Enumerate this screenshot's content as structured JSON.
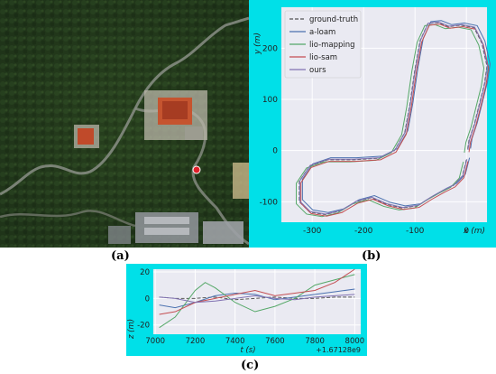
{
  "labels": {
    "a": "(a)",
    "b": "(b)",
    "c": "(c)"
  },
  "colors": {
    "ground_truth": "#555555",
    "a_loam": "#4c72b0",
    "lio_mapping": "#55a868",
    "lio_sam": "#c44e52",
    "ours": "#8172b2",
    "plot_bg": "#eaeaf2",
    "panel_bg": "#00e0e8"
  },
  "satellite": {
    "description_icon": "aerial-map-image",
    "marker_color": "#e0202a"
  },
  "chart_data": [
    {
      "type": "line",
      "panel": "b",
      "xlabel": "x (m)",
      "ylabel": "y (m)",
      "xlim": [
        -360,
        40
      ],
      "ylim": [
        -140,
        280
      ],
      "xticks": [
        -300,
        -200,
        -100,
        0
      ],
      "yticks": [
        -100,
        0,
        100,
        200
      ],
      "grid": true,
      "legend_position": "top-left",
      "series": [
        {
          "name": "ground-truth",
          "style": "dashed",
          "offset": [
            0,
            0
          ]
        },
        {
          "name": "a-loam",
          "style": "solid",
          "offset": [
            6,
            4
          ]
        },
        {
          "name": "lio-mapping",
          "style": "solid",
          "offset": [
            -6,
            -4
          ]
        },
        {
          "name": "lio-sam",
          "style": "solid",
          "offset": [
            3,
            -3
          ]
        },
        {
          "name": "ours",
          "style": "solid",
          "offset": [
            1,
            1
          ]
        }
      ],
      "reference_path": [
        [
          0,
          -18
        ],
        [
          -8,
          -50
        ],
        [
          -25,
          -68
        ],
        [
          -45,
          -78
        ],
        [
          -70,
          -92
        ],
        [
          -95,
          -108
        ],
        [
          -125,
          -112
        ],
        [
          -155,
          -105
        ],
        [
          -185,
          -92
        ],
        [
          -215,
          -100
        ],
        [
          -245,
          -118
        ],
        [
          -275,
          -125
        ],
        [
          -305,
          -120
        ],
        [
          -325,
          -100
        ],
        [
          -325,
          -60
        ],
        [
          -305,
          -30
        ],
        [
          -270,
          -18
        ],
        [
          -220,
          -18
        ],
        [
          -170,
          -15
        ],
        [
          -140,
          0
        ],
        [
          -120,
          35
        ],
        [
          -110,
          90
        ],
        [
          -100,
          160
        ],
        [
          -90,
          215
        ],
        [
          -75,
          248
        ],
        [
          -55,
          250
        ],
        [
          -35,
          242
        ],
        [
          -10,
          245
        ],
        [
          15,
          240
        ],
        [
          30,
          210
        ],
        [
          40,
          165
        ],
        [
          35,
          130
        ],
        [
          25,
          90
        ],
        [
          15,
          50
        ],
        [
          5,
          20
        ],
        [
          2,
          0
        ]
      ]
    },
    {
      "type": "line",
      "panel": "c",
      "xlabel": "t (s)",
      "ylabel": "z (m)",
      "xlim": [
        6990,
        8030
      ],
      "ylim": [
        -27,
        22
      ],
      "xticks": [
        7000,
        7200,
        7400,
        7600,
        7800,
        8000
      ],
      "yticks": [
        -20,
        0,
        20
      ],
      "offset_text": "+1.67128e9",
      "grid": true,
      "series": [
        {
          "name": "ground-truth",
          "style": "dashed",
          "x": [
            7020,
            7100,
            7200,
            7300,
            7400,
            7500,
            7600,
            7700,
            7800,
            7900,
            8000
          ],
          "y": [
            1,
            0,
            0,
            1,
            -1,
            0,
            1,
            0,
            0,
            1,
            1
          ]
        },
        {
          "name": "a-loam",
          "x": [
            7020,
            7100,
            7200,
            7300,
            7400,
            7500,
            7600,
            7700,
            7800,
            7900,
            8000
          ],
          "y": [
            -5,
            -7,
            -3,
            2,
            4,
            3,
            -1,
            1,
            3,
            5,
            7
          ]
        },
        {
          "name": "lio-mapping",
          "x": [
            7020,
            7100,
            7200,
            7250,
            7300,
            7400,
            7500,
            7600,
            7700,
            7800,
            7900,
            8000
          ],
          "y": [
            -22,
            -14,
            6,
            12,
            8,
            -3,
            -10,
            -6,
            0,
            10,
            14,
            18
          ]
        },
        {
          "name": "lio-sam",
          "x": [
            7020,
            7100,
            7200,
            7300,
            7400,
            7500,
            7600,
            7700,
            7800,
            7900,
            8000
          ],
          "y": [
            -12,
            -10,
            -3,
            0,
            3,
            6,
            2,
            4,
            6,
            12,
            22
          ]
        },
        {
          "name": "ours",
          "x": [
            7020,
            7100,
            7200,
            7300,
            7400,
            7500,
            7600,
            7700,
            7800,
            7900,
            8000
          ],
          "y": [
            1,
            0,
            -3,
            -2,
            0,
            2,
            0,
            -1,
            1,
            2,
            3
          ]
        }
      ]
    }
  ]
}
